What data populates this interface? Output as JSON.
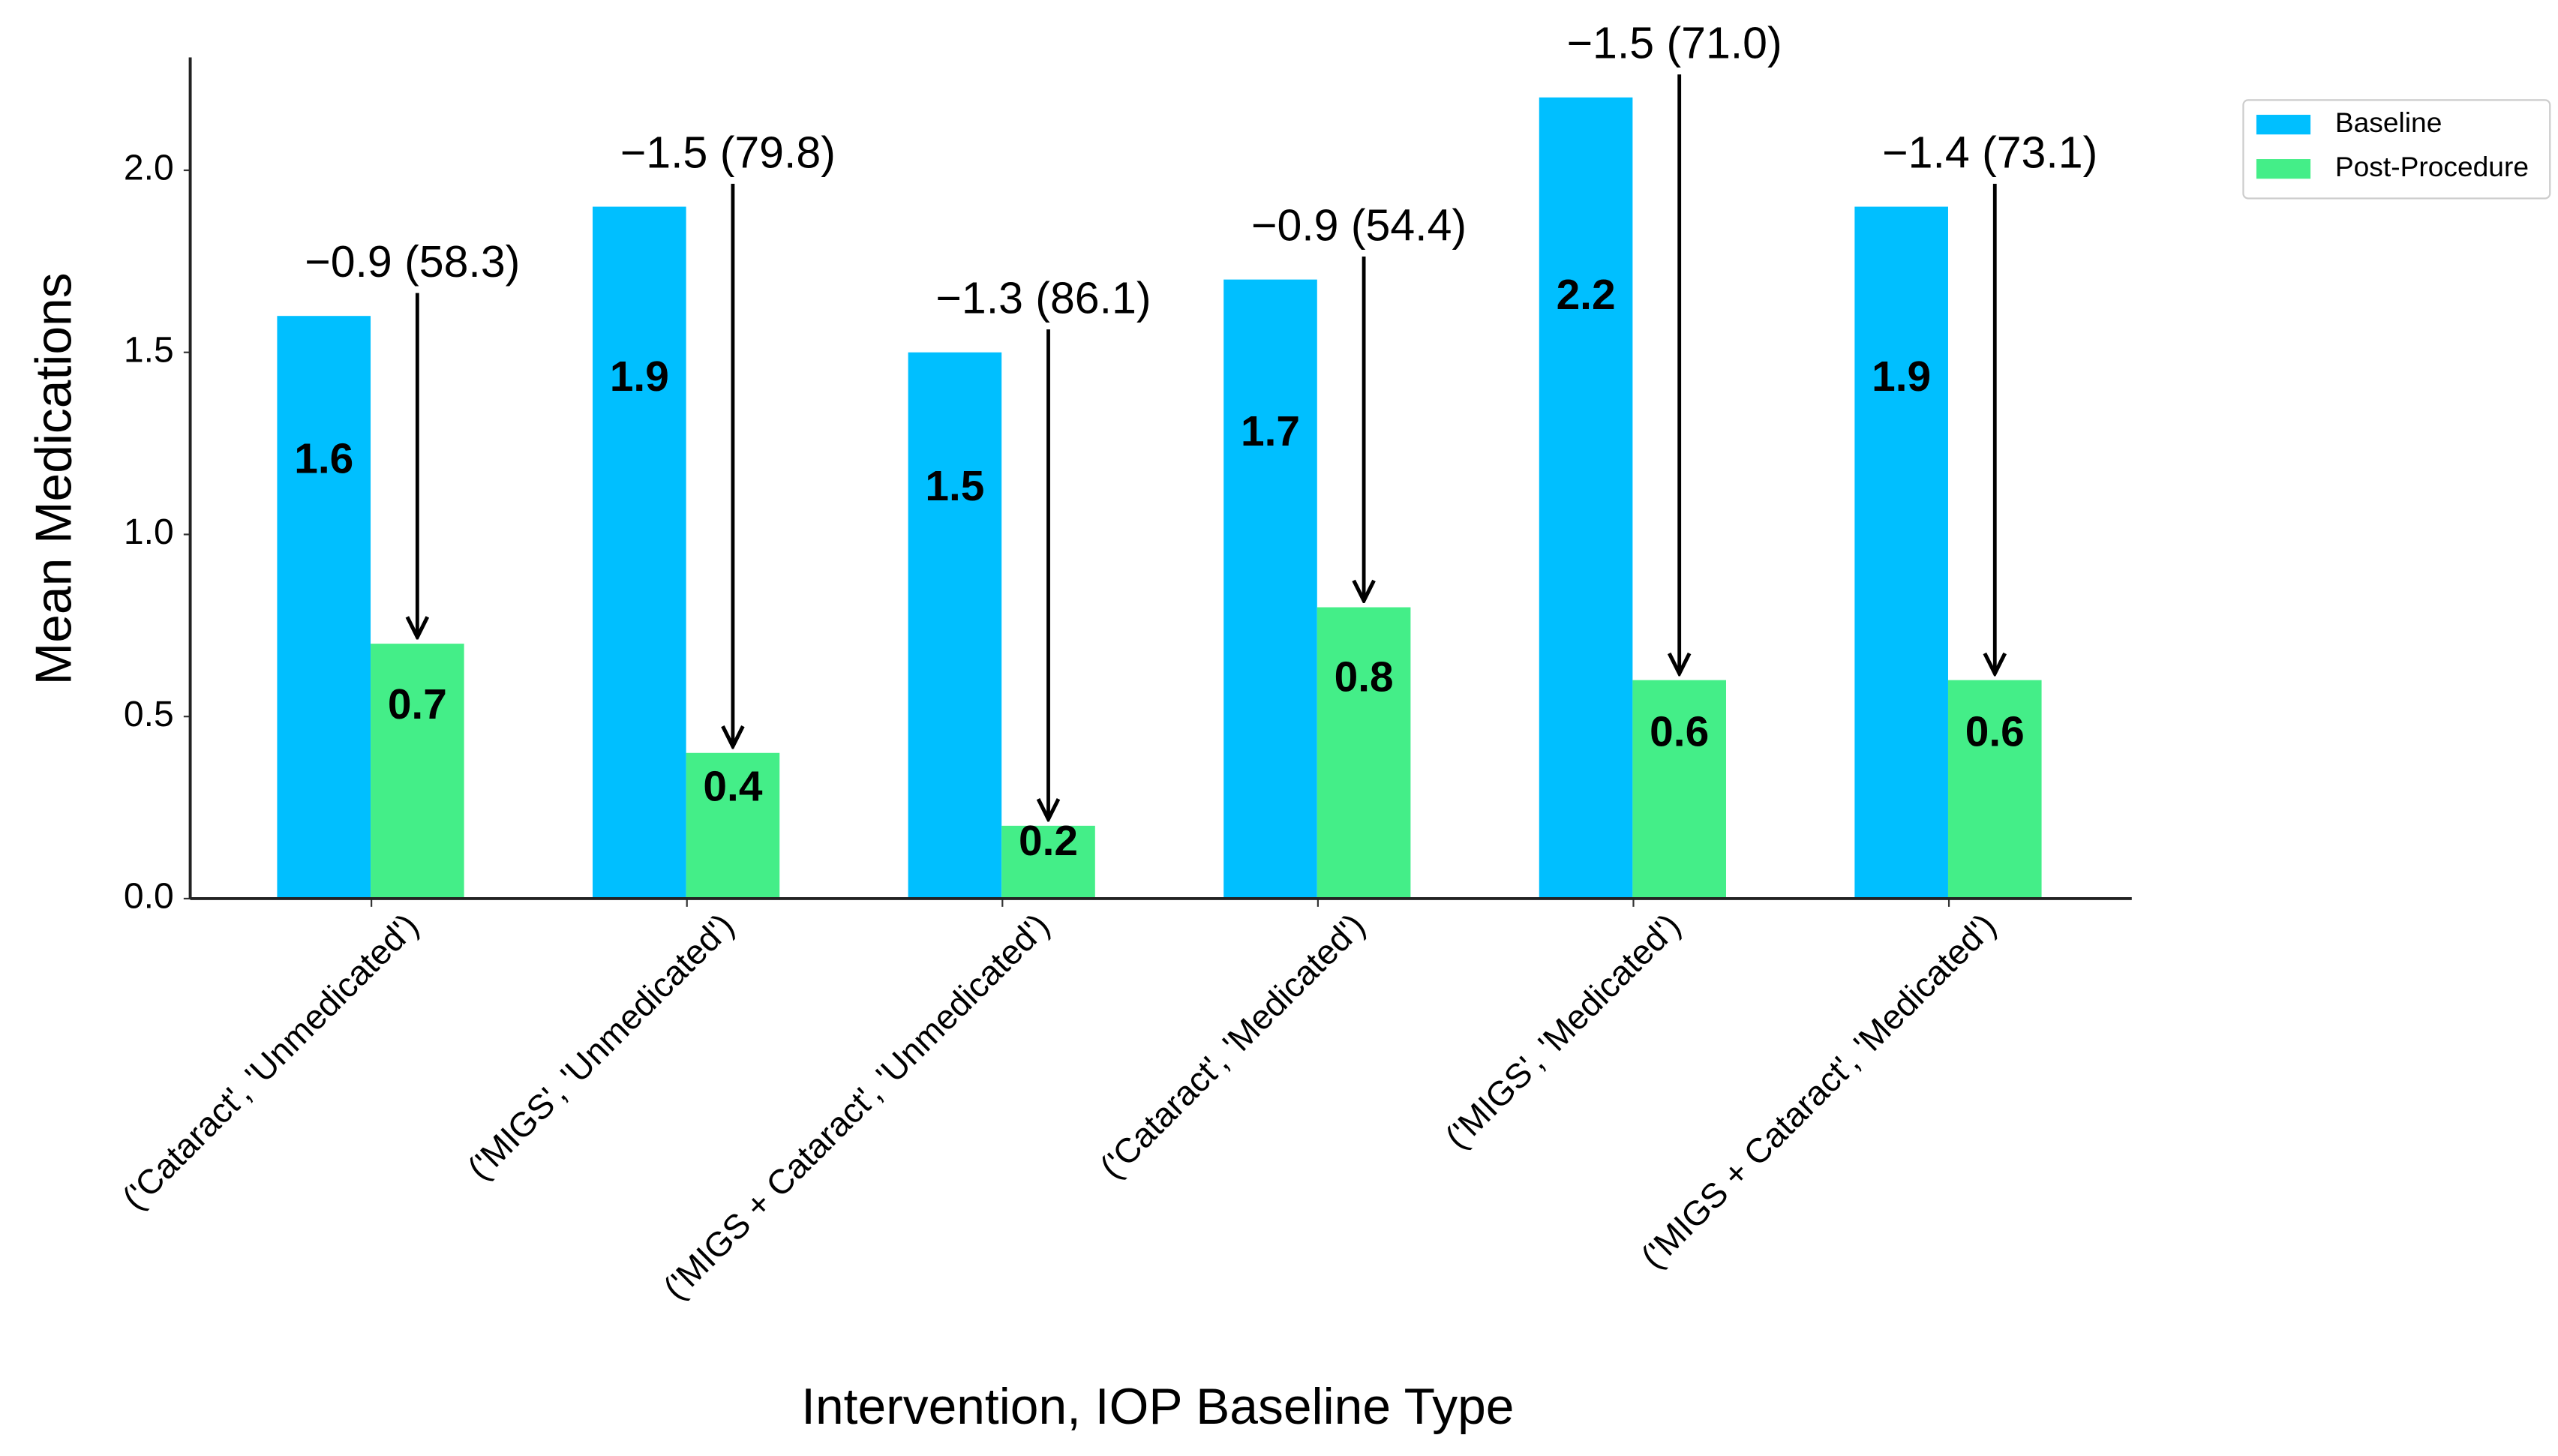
{
  "chart_data": {
    "type": "bar",
    "xlabel": "Intervention, IOP Baseline Type",
    "ylabel": "Mean Medications",
    "categories": [
      "('Cataract', 'Unmedicated')",
      "('MIGS', 'Unmedicated')",
      "('MIGS + Cataract', 'Unmedicated')",
      "('Cataract', 'Medicated')",
      "('MIGS', 'Medicated')",
      "('MIGS + Cataract', 'Medicated')"
    ],
    "series": [
      {
        "name": "Baseline",
        "color": "#00bfff",
        "values": [
          1.6,
          1.9,
          1.5,
          1.7,
          2.2,
          1.9
        ]
      },
      {
        "name": "Post-Procedure",
        "color": "#44ee88",
        "values": [
          0.7,
          0.4,
          0.2,
          0.8,
          0.6,
          0.6
        ]
      }
    ],
    "annotations": [
      "−0.9 (58.3)",
      "−1.5 (79.8)",
      "−1.3 (86.1)",
      "−0.9 (54.4)",
      "−1.5 (71.0)",
      "−1.4 (73.1)"
    ],
    "ylim": [
      0,
      2.31
    ],
    "yticks": [
      {
        "value": 0,
        "label": "0.0"
      },
      {
        "value": 0.5,
        "label": "0.5"
      },
      {
        "value": 1,
        "label": "1.0"
      },
      1.5,
      {
        "value": 2,
        "label": "2.0"
      }
    ],
    "legend": "outside-right"
  }
}
